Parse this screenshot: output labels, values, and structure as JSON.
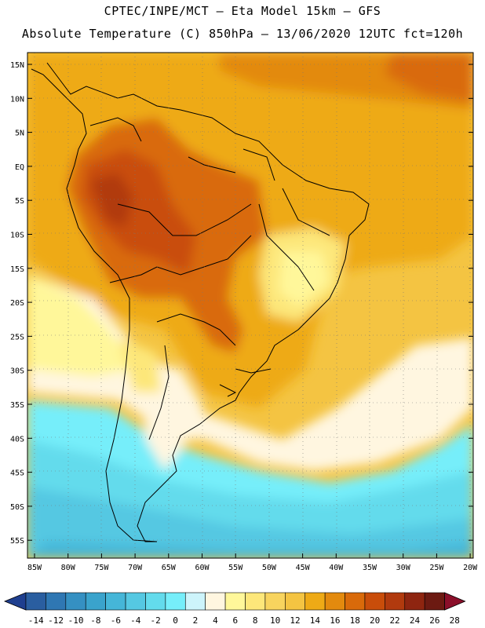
{
  "header": {
    "line1": "CPTEC/INPE/MCT –  Eta Model 15km – GFS",
    "line2": "Absolute Temperature (C) 850hPa – 13/06/2020 12UTC fct=120h"
  },
  "map": {
    "lat_labels": [
      "15N",
      "10N",
      "5N",
      "EQ",
      "5S",
      "10S",
      "15S",
      "20S",
      "25S",
      "30S",
      "35S",
      "40S",
      "45S",
      "50S",
      "55S"
    ],
    "lon_labels": [
      "85W",
      "80W",
      "75W",
      "70W",
      "65W",
      "60W",
      "55W",
      "50W",
      "45W",
      "40W",
      "35W",
      "30W",
      "25W",
      "20W"
    ]
  },
  "colorbar": {
    "labels": [
      "-14",
      "-12",
      "-10",
      "-8",
      "-6",
      "-4",
      "-2",
      "0",
      "2",
      "4",
      "6",
      "8",
      "10",
      "12",
      "14",
      "16",
      "18",
      "20",
      "22",
      "24",
      "26",
      "28"
    ],
    "colors": [
      "#1f3f8f",
      "#2a5ea0",
      "#2f77b3",
      "#3590c2",
      "#3aa3cc",
      "#45b6d8",
      "#55c8e2",
      "#63dbec",
      "#76eefa",
      "#cdf4fb",
      "#fff6e0",
      "#fff79a",
      "#fde77a",
      "#f8d45e",
      "#f4c442",
      "#eeaa16",
      "#e38a0e",
      "#d96a0a",
      "#c94d0a",
      "#b13a0e",
      "#8e2510",
      "#6c1a12",
      "#8b0f2a"
    ]
  }
}
